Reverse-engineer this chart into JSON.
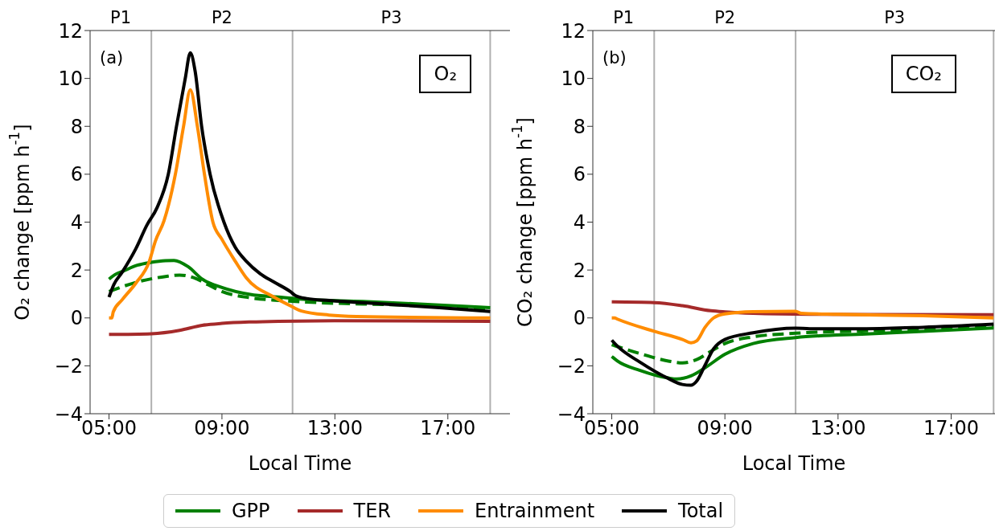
{
  "chart_data": [
    {
      "type": "line",
      "ylabel": "O₂ change [ppm h$^{-1}$]",
      "xlabel": "Local Time",
      "annotations": [
        "(a)",
        "O₂",
        "P1",
        "P2",
        "P3"
      ],
      "xlim": [
        4.33,
        19.2
      ],
      "xticks": [
        {
          "value": 5,
          "label": "05:00"
        },
        {
          "value": 9,
          "label": "09:00"
        },
        {
          "value": 13,
          "label": "13:00"
        },
        {
          "value": 17,
          "label": "17:00"
        }
      ],
      "ylim": [
        -4,
        12
      ],
      "yticks": [
        -4,
        -2,
        0,
        2,
        4,
        6,
        8,
        10,
        12
      ],
      "legend": "bottom",
      "ref_lines": [
        {
          "axis": "x",
          "value": 6.5,
          "color": "#b0b0b0"
        },
        {
          "axis": "x",
          "value": 11.5,
          "color": "#b0b0b0"
        },
        {
          "axis": "x",
          "value": 18.5,
          "color": "#b0b0b0"
        }
      ],
      "series": [
        {
          "name": "GPP",
          "color": "#008000",
          "x": [
            5,
            5.2,
            5.5,
            6,
            6.5,
            7,
            7.3,
            7.8,
            8.3,
            9,
            10,
            11,
            12,
            14,
            16,
            18.5
          ],
          "values": [
            1.62,
            1.8,
            1.95,
            2.2,
            2.32,
            2.39,
            2.4,
            2.14,
            1.62,
            1.27,
            0.98,
            0.87,
            0.77,
            0.69,
            0.58,
            0.43
          ]
        },
        {
          "color": "#008000",
          "line_style": "dashed",
          "x": [
            5,
            6,
            7,
            7.5,
            8,
            8.5,
            9,
            10,
            11,
            12,
            14,
            16,
            18.5
          ],
          "values": [
            1.1,
            1.5,
            1.73,
            1.79,
            1.68,
            1.39,
            1.1,
            0.84,
            0.73,
            0.66,
            0.58,
            0.52,
            0.35
          ]
        },
        {
          "name": "TER",
          "color": "#a52a2a",
          "x": [
            5,
            6.5,
            7.5,
            8.3,
            9,
            10,
            11,
            13,
            18.5
          ],
          "values": [
            -0.69,
            -0.66,
            -0.52,
            -0.31,
            -0.23,
            -0.17,
            -0.14,
            -0.12,
            -0.14
          ]
        },
        {
          "name": "Entrainment",
          "color": "#ff8c00",
          "x": [
            5,
            5.1,
            5.15,
            5.46,
            5.95,
            6.43,
            6.64,
            6.95,
            7.35,
            7.64,
            7.88,
            8.13,
            8.38,
            8.68,
            8.99,
            9.47,
            9.86,
            10.84,
            11.5,
            11.81,
            12.79,
            13.77,
            18.5
          ],
          "values": [
            0,
            0,
            0.25,
            0.75,
            1.45,
            2.37,
            3.2,
            4.06,
            6.0,
            8.0,
            9.53,
            8.0,
            6.0,
            4.0,
            3.3,
            2.37,
            1.68,
            0.87,
            0.46,
            0.29,
            0.12,
            0.06,
            0
          ]
        },
        {
          "name": "Total",
          "color": "#000000",
          "x": [
            5,
            5.17,
            5.46,
            5.95,
            6.34,
            6.7,
            7.1,
            7.39,
            7.7,
            7.88,
            8.05,
            8.28,
            8.58,
            9.07,
            9.47,
            9.86,
            10.35,
            10.84,
            11.42,
            11.62,
            12.0,
            12.79,
            14.75,
            16.7,
            18.5
          ],
          "values": [
            0.87,
            1.39,
            1.9,
            2.89,
            3.87,
            4.6,
            6.0,
            8.0,
            10.0,
            11.07,
            10.3,
            8.0,
            6.0,
            4.0,
            2.95,
            2.37,
            1.85,
            1.5,
            1.1,
            0.92,
            0.81,
            0.73,
            0.58,
            0.43,
            0.27
          ]
        }
      ]
    },
    {
      "type": "line",
      "ylabel": "CO₂ change [ppm h$^{-1}$]",
      "xlabel": "Local Time",
      "annotations": [
        "(b)",
        "CO₂",
        "P1",
        "P2",
        "P3"
      ],
      "xlim": [
        4.33,
        18.55
      ],
      "xticks": [
        {
          "value": 5,
          "label": "05:00"
        },
        {
          "value": 9,
          "label": "09:00"
        },
        {
          "value": 13,
          "label": "13:00"
        },
        {
          "value": 17,
          "label": "17:00"
        }
      ],
      "ylim": [
        -4,
        12
      ],
      "yticks": [
        -4,
        -2,
        0,
        2,
        4,
        6,
        8,
        10,
        12
      ],
      "ref_lines": [
        {
          "axis": "x",
          "value": 6.5,
          "color": "#b0b0b0"
        },
        {
          "axis": "x",
          "value": 11.5,
          "color": "#b0b0b0"
        },
        {
          "axis": "x",
          "value": 18.5,
          "color": "#b0b0b0"
        }
      ],
      "series": [
        {
          "name": "GPP",
          "color": "#008000",
          "x": [
            5,
            5.2,
            6,
            7,
            7.3,
            7.8,
            8.3,
            9,
            10,
            11.5,
            14,
            16,
            18.5
          ],
          "values": [
            -1.61,
            -1.8,
            -2.19,
            -2.51,
            -2.55,
            -2.42,
            -2.08,
            -1.52,
            -1.07,
            -0.82,
            -0.67,
            -0.56,
            -0.42
          ]
        },
        {
          "color": "#008000",
          "line_style": "dashed",
          "x": [
            5,
            6,
            7,
            7.5,
            8,
            8.5,
            9,
            10,
            11.5,
            14,
            16,
            18.5
          ],
          "values": [
            -1.12,
            -1.49,
            -1.8,
            -1.88,
            -1.74,
            -1.4,
            -1.07,
            -0.79,
            -0.64,
            -0.54,
            -0.48,
            -0.37
          ]
        },
        {
          "name": "TER",
          "color": "#a52a2a",
          "x": [
            5,
            6.5,
            7.5,
            8.5,
            9,
            10,
            12,
            18.5
          ],
          "values": [
            0.67,
            0.64,
            0.51,
            0.3,
            0.25,
            0.19,
            0.15,
            0.13
          ]
        },
        {
          "name": "Entrainment",
          "color": "#ff8c00",
          "x": [
            5,
            5.1,
            5.2,
            6.5,
            7.5,
            7.8,
            8.0,
            8.3,
            8.6,
            9,
            10,
            11.5,
            11.7,
            13,
            16,
            18.5
          ],
          "values": [
            0,
            0,
            -0.05,
            -0.56,
            -0.9,
            -1.04,
            -0.96,
            -0.39,
            0,
            0.17,
            0.26,
            0.28,
            0.19,
            0.15,
            0.09,
            0
          ]
        },
        {
          "name": "Total",
          "color": "#000000",
          "x": [
            5,
            5.2,
            6,
            7,
            7.5,
            7.8,
            8.0,
            8.3,
            8.6,
            9,
            10,
            11.5,
            12,
            14,
            16,
            18.5
          ],
          "values": [
            -0.93,
            -1.18,
            -1.85,
            -2.53,
            -2.78,
            -2.81,
            -2.64,
            -1.97,
            -1.29,
            -0.9,
            -0.62,
            -0.43,
            -0.45,
            -0.45,
            -0.39,
            -0.26
          ]
        }
      ]
    }
  ]
}
